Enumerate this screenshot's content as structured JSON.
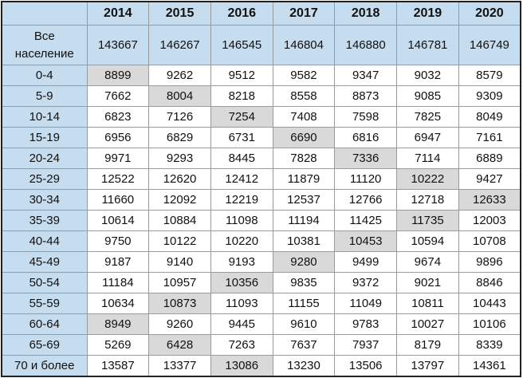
{
  "table": {
    "header": [
      "2014",
      "2015",
      "2016",
      "2017",
      "2018",
      "2019",
      "2020"
    ],
    "rows": [
      [
        "Все население",
        "143667",
        "146267",
        "146545",
        "146804",
        "146880",
        "146781",
        "146749"
      ],
      [
        "0-4",
        "8899",
        "9262",
        "9512",
        "9582",
        "9347",
        "9032",
        "8579"
      ],
      [
        "5-9",
        "7662",
        "8004",
        "8218",
        "8558",
        "8873",
        "9085",
        "9309"
      ],
      [
        "10-14",
        "6823",
        "7126",
        "7254",
        "7408",
        "7598",
        "7825",
        "8049"
      ],
      [
        "15-19",
        "6956",
        "6829",
        "6731",
        "6690",
        "6816",
        "6947",
        "7161"
      ],
      [
        "20-24",
        "9971",
        "9293",
        "8445",
        "7828",
        "7336",
        "7114",
        "6889"
      ],
      [
        "25-29",
        "12522",
        "12620",
        "12412",
        "11879",
        "11120",
        "10222",
        "9427"
      ],
      [
        "30-34",
        "11660",
        "12092",
        "12219",
        "12537",
        "12766",
        "12718",
        "12633"
      ],
      [
        "35-39",
        "10614",
        "10884",
        "11098",
        "11194",
        "11425",
        "11735",
        "12003"
      ],
      [
        "40-44",
        "9750",
        "10122",
        "10220",
        "10381",
        "10453",
        "10594",
        "10708"
      ],
      [
        "45-49",
        "9187",
        "9140",
        "9193",
        "9280",
        "9499",
        "9674",
        "9896"
      ],
      [
        "50-54",
        "11184",
        "10957",
        "10356",
        "9835",
        "9372",
        "9021",
        "8846"
      ],
      [
        "55-59",
        "10634",
        "10873",
        "11093",
        "11155",
        "11049",
        "10811",
        "10443"
      ],
      [
        "60-64",
        "8949",
        "9260",
        "9445",
        "9610",
        "9783",
        "10027",
        "10106"
      ],
      [
        "65-69",
        "5269",
        "6428",
        "7263",
        "7637",
        "7937",
        "8179",
        "8339"
      ],
      [
        "70 и более",
        "13587",
        "13377",
        "13086",
        "13230",
        "13506",
        "13797",
        "14361"
      ]
    ],
    "highlight": [
      null,
      1,
      2,
      3,
      4,
      5,
      6,
      7,
      6,
      5,
      4,
      3,
      2,
      1,
      2,
      3
    ]
  }
}
